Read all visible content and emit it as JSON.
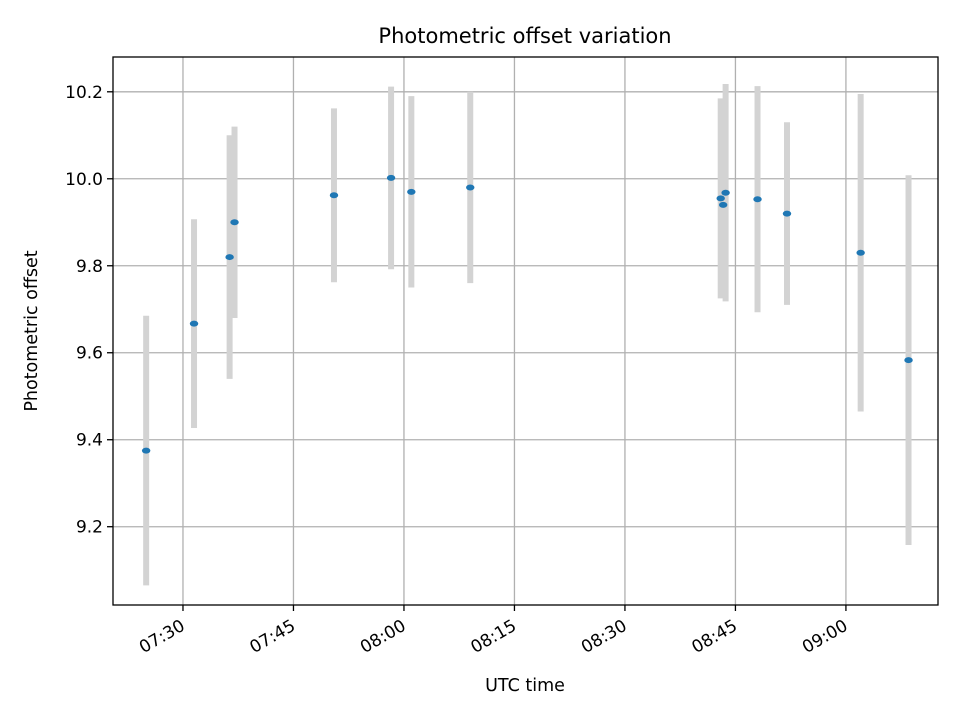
{
  "chart_data": {
    "type": "scatter",
    "title": "Photometric offset variation",
    "xlabel": "UTC time",
    "ylabel": "Photometric offset",
    "x_axis": {
      "kind": "time",
      "range": [
        "07:20:30",
        "09:12:30"
      ],
      "tick_values": [
        "07:30",
        "07:45",
        "08:00",
        "08:15",
        "08:30",
        "08:45",
        "09:00"
      ],
      "tick_labels": [
        "07:30",
        "07:45",
        "08:00",
        "08:15",
        "08:30",
        "08:45",
        "09:00"
      ],
      "tick_label_rotation": "30 degrees"
    },
    "y_axis": {
      "range": [
        9.02,
        10.28
      ],
      "ticks": [
        9.2,
        9.4,
        9.6,
        9.8,
        10.0,
        10.2
      ],
      "tick_labels": [
        "9.2",
        "9.4",
        "9.6",
        "9.8",
        "10.0",
        "10.2"
      ]
    },
    "grid": true,
    "legend": "none",
    "colors": {
      "point": "#1f77b4",
      "errorbar": "#d3d3d3",
      "grid": "#b0b0b0"
    },
    "points": [
      {
        "time": "07:25:00",
        "y": 9.375,
        "yerr": 0.31
      },
      {
        "time": "07:31:30",
        "y": 9.667,
        "yerr": 0.24
      },
      {
        "time": "07:36:20",
        "y": 9.82,
        "yerr": 0.28
      },
      {
        "time": "07:37:00",
        "y": 9.9,
        "yerr": 0.22
      },
      {
        "time": "07:50:30",
        "y": 9.962,
        "yerr": 0.2
      },
      {
        "time": "07:58:15",
        "y": 10.002,
        "yerr": 0.21
      },
      {
        "time": "08:01:00",
        "y": 9.97,
        "yerr": 0.22
      },
      {
        "time": "08:09:00",
        "y": 9.98,
        "yerr": 0.22
      },
      {
        "time": "08:43:00",
        "y": 9.955,
        "yerr": 0.23
      },
      {
        "time": "08:43:20",
        "y": 9.94,
        "yerr": 0.2
      },
      {
        "time": "08:43:40",
        "y": 9.968,
        "yerr": 0.25
      },
      {
        "time": "08:48:00",
        "y": 9.953,
        "yerr": 0.26
      },
      {
        "time": "08:52:00",
        "y": 9.92,
        "yerr": 0.21
      },
      {
        "time": "09:02:00",
        "y": 9.83,
        "yerr": 0.365
      },
      {
        "time": "09:08:30",
        "y": 9.583,
        "yerr": 0.425
      }
    ]
  }
}
